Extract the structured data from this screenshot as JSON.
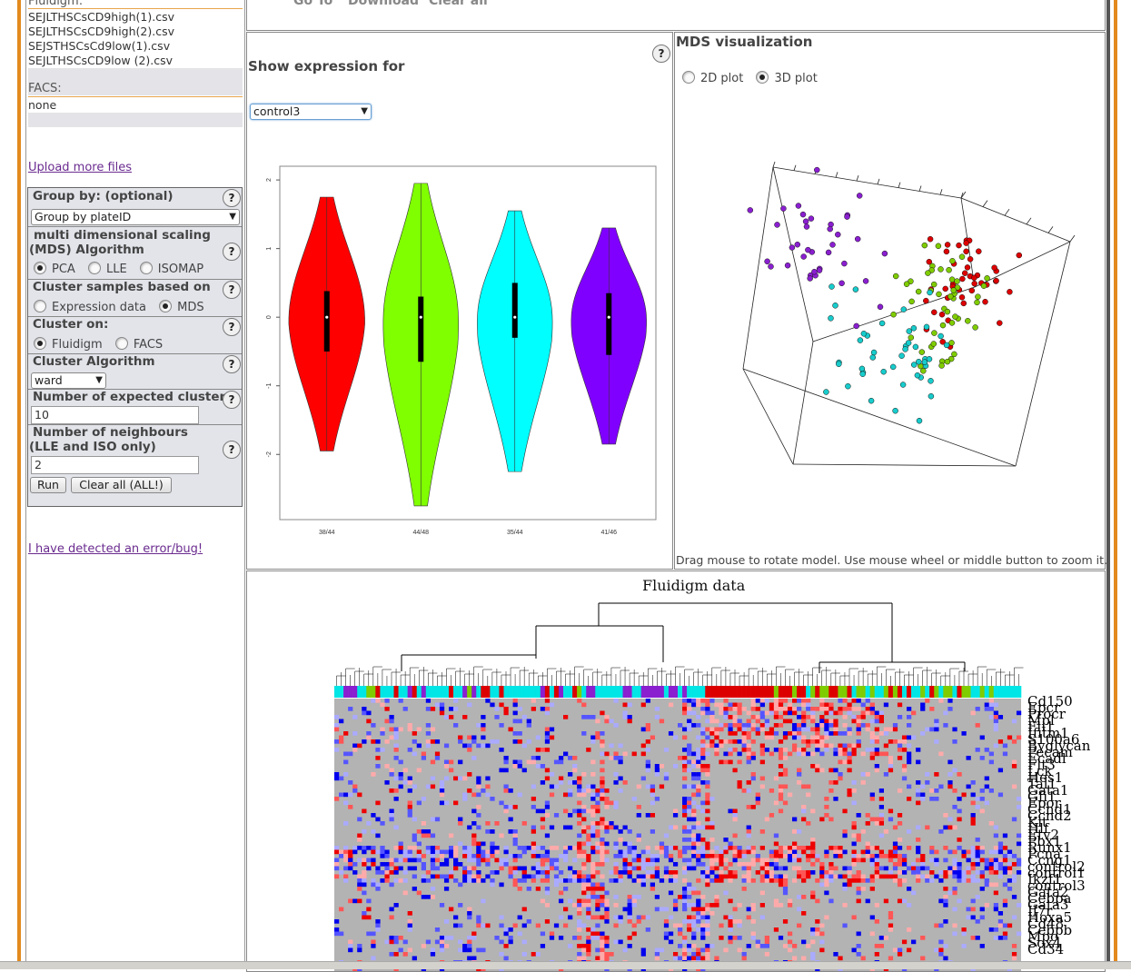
{
  "files": {
    "fluidigm_label": "Fluidigm:",
    "fluidigm_items": [
      "SEJLTHSCsCD9high(1).csv",
      "SEJLTHSCsCD9high(2).csv",
      "SEJSTHSCsCd9low(1).csv",
      "SEJLTHSCsCD9low (2).csv"
    ],
    "facs_label": "FACS:",
    "facs_items": [
      "none"
    ]
  },
  "upload_link": "Upload more files",
  "error_link": "I have detected an error/bug!",
  "form": {
    "group_by_title": "Group by: (optional)",
    "group_by_value": "Group by plateID",
    "mds_title": "multi dimensional scaling (MDS) Algorithm",
    "mds_options": [
      "PCA",
      "LLE",
      "ISOMAP"
    ],
    "mds_selected": 0,
    "cluster_based_title": "Cluster samples based on",
    "cluster_based_options": [
      "Expression data",
      "MDS"
    ],
    "cluster_based_selected": 1,
    "cluster_on_title": "Cluster on:",
    "cluster_on_options": [
      "Fluidigm",
      "FACS"
    ],
    "cluster_on_selected": 0,
    "cluster_algo_title": "Cluster Algorithm",
    "cluster_algo_value": "ward",
    "num_clusters_title": "Number of expected clusters",
    "num_clusters_value": "10",
    "neighbours_title_1": "Number of neighbours",
    "neighbours_title_2": "(LLE and ISO only)",
    "neighbours_value": "2",
    "run_label": "Run",
    "clear_label": "Clear all (ALL!)",
    "help_label": "?"
  },
  "top_links": [
    "Go To",
    "Download",
    "Clear all"
  ],
  "expression": {
    "title": "Show expression for",
    "selected": "control3",
    "help_label": "?"
  },
  "chart_data": {
    "type": "violin",
    "categories": [
      "38/44",
      "44/48",
      "35/44",
      "41/46"
    ],
    "colors": [
      "#ff0000",
      "#80ff00",
      "#00ffff",
      "#8000ff"
    ],
    "medians": [
      0,
      0,
      0,
      0
    ],
    "min": [
      -1.95,
      -2.75,
      -2.25,
      -1.85
    ],
    "max": [
      1.75,
      1.95,
      1.55,
      1.3
    ],
    "q1": [
      -0.5,
      -0.65,
      -0.3,
      -0.55
    ],
    "q3": [
      0.38,
      0.3,
      0.5,
      0.35
    ],
    "ytick_labels": [
      "2",
      "1",
      "0",
      "-1",
      "-2"
    ],
    "ylim": [
      -2.95,
      2.2
    ]
  },
  "mds": {
    "title": "MDS visualization",
    "options": [
      "2D plot",
      "3D plot"
    ],
    "selected": 1,
    "footer": "Drag mouse to rotate model. Use mouse wheel or middle button to zoom it."
  },
  "heatmap": {
    "title": "Fluidigm data",
    "genes": [
      "Cd150",
      "Epcr",
      "Procr",
      "Mpl",
      "Fli1",
      "Ifitm1",
      "S100a6",
      "Byglycan",
      "Pecam",
      "Ecadl",
      "Flt3",
      "Lck",
      "Hes1",
      "Tal1",
      "Gata1",
      "Gfi1",
      "Epor",
      "Ccnd1",
      "Ccnd2",
      "Kit",
      "Hlf",
      "Etv2",
      "Pbx1",
      "Runx1",
      "Pcna",
      "Ccng1",
      "control2",
      "control1",
      "Ikzf1",
      "control3",
      "Gata2",
      "Cebpa",
      "Gata3",
      "Il7r",
      "Hoxa5",
      "Cd48",
      "Cebpb",
      "Mpo",
      "Sox4",
      "Cd34"
    ]
  }
}
